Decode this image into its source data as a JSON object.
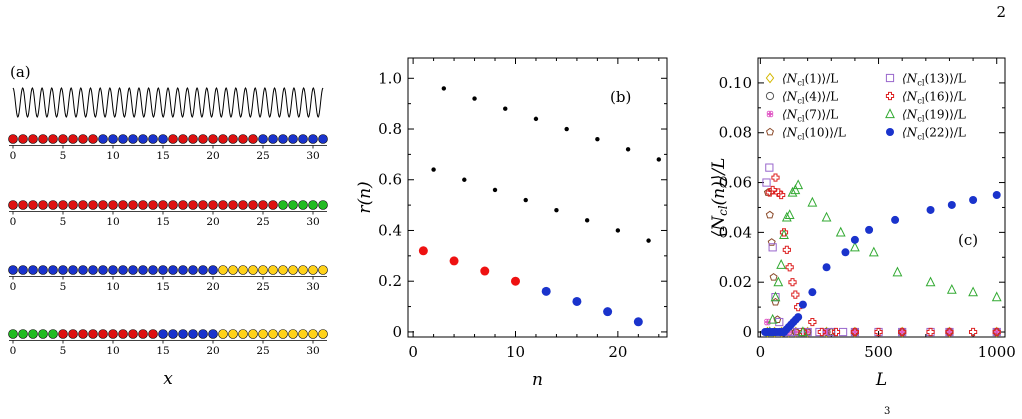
{
  "page_number": "2",
  "footnote_mark": "3",
  "chart_data": [
    {
      "type": "diagram",
      "panel_label": "(a)",
      "xlabel": "x",
      "xticks": [
        0,
        5,
        10,
        15,
        20,
        25,
        30
      ],
      "sites_per_chain": 32,
      "colors": {
        "red": "#dd1111",
        "blue": "#1a33cc",
        "green": "#22bb22",
        "yellow": "#ffd21a"
      },
      "chains": [
        [
          "red",
          "red",
          "red",
          "red",
          "red",
          "red",
          "red",
          "red",
          "red",
          "blue",
          "blue",
          "blue",
          "blue",
          "blue",
          "blue",
          "blue",
          "red",
          "red",
          "red",
          "red",
          "red",
          "red",
          "red",
          "red",
          "red",
          "blue",
          "blue",
          "blue",
          "blue",
          "blue",
          "blue",
          "blue"
        ],
        [
          "red",
          "red",
          "red",
          "red",
          "red",
          "red",
          "red",
          "red",
          "red",
          "red",
          "red",
          "red",
          "red",
          "red",
          "red",
          "red",
          "red",
          "red",
          "red",
          "red",
          "red",
          "red",
          "red",
          "red",
          "red",
          "red",
          "red",
          "green",
          "green",
          "green",
          "green",
          "green"
        ],
        [
          "blue",
          "blue",
          "blue",
          "blue",
          "blue",
          "blue",
          "blue",
          "blue",
          "blue",
          "blue",
          "blue",
          "blue",
          "blue",
          "blue",
          "blue",
          "blue",
          "blue",
          "blue",
          "blue",
          "blue",
          "blue",
          "yellow",
          "yellow",
          "yellow",
          "yellow",
          "yellow",
          "yellow",
          "yellow",
          "yellow",
          "yellow",
          "yellow",
          "yellow"
        ],
        [
          "green",
          "green",
          "green",
          "green",
          "green",
          "red",
          "red",
          "red",
          "red",
          "red",
          "red",
          "red",
          "red",
          "red",
          "red",
          "blue",
          "blue",
          "blue",
          "blue",
          "blue",
          "blue",
          "yellow",
          "yellow",
          "yellow",
          "yellow",
          "yellow",
          "yellow",
          "yellow",
          "yellow",
          "yellow",
          "yellow",
          "yellow"
        ]
      ],
      "wave_periods": 32
    },
    {
      "type": "scatter",
      "panel_label": "(b)",
      "xlabel": "n",
      "ylabel": "r(n)",
      "xlim": [
        -0.5,
        24.8
      ],
      "ylim": [
        -0.02,
        1.08
      ],
      "xticks": [
        0,
        10,
        20
      ],
      "yticks": [
        "0",
        "0.2",
        "0.4",
        "0.6",
        "0.8",
        "1.0"
      ],
      "series": [
        {
          "color": "#000000",
          "points": [
            [
              2,
              0.64
            ],
            [
              3,
              0.96
            ],
            [
              5,
              0.6
            ],
            [
              6,
              0.92
            ],
            [
              8,
              0.56
            ],
            [
              9,
              0.88
            ],
            [
              11,
              0.52
            ],
            [
              12,
              0.84
            ],
            [
              14,
              0.48
            ],
            [
              15,
              0.8
            ],
            [
              17,
              0.44
            ],
            [
              18,
              0.76
            ],
            [
              20,
              0.4
            ],
            [
              21,
              0.72
            ],
            [
              23,
              0.36
            ],
            [
              24,
              0.68
            ]
          ]
        },
        {
          "color": "#ee1111",
          "points": [
            [
              1,
              0.32
            ],
            [
              4,
              0.28
            ],
            [
              7,
              0.24
            ],
            [
              10,
              0.2
            ]
          ]
        },
        {
          "color": "#1a33cc",
          "points": [
            [
              13,
              0.16
            ],
            [
              16,
              0.12
            ],
            [
              19,
              0.08
            ],
            [
              22,
              0.04
            ]
          ]
        }
      ]
    },
    {
      "type": "scatter",
      "panel_label": "(c)",
      "xlabel": "L",
      "ylabel": "⟨N_cl(n)⟩/L",
      "xlim": [
        -10,
        1035
      ],
      "ylim": [
        -0.002,
        0.11
      ],
      "xticks": [
        0,
        500,
        1000
      ],
      "yticks": [
        "0",
        "0.02",
        "0.04",
        "0.06",
        "0.08",
        "0.10"
      ],
      "legend": [
        {
          "name": "⟨N_cl(1)⟩/L",
          "marker": "diamond",
          "color": "#d4b800"
        },
        {
          "name": "⟨N_cl(4)⟩/L",
          "marker": "circle",
          "color": "#555555"
        },
        {
          "name": "⟨N_cl(7)⟩/L",
          "marker": "flower",
          "color": "#e055c4"
        },
        {
          "name": "⟨N_cl(10)⟩/L",
          "marker": "pentagon",
          "color": "#8b4a2a"
        },
        {
          "name": "⟨N_cl(13)⟩/L",
          "marker": "square",
          "color": "#9966cc"
        },
        {
          "name": "⟨N_cl(16)⟩/L",
          "marker": "plus",
          "color": "#dd2222"
        },
        {
          "name": "⟨N_cl(19)⟩/L",
          "marker": "triangle",
          "color": "#33aa33"
        },
        {
          "name": "⟨N_cl(22)⟩/L",
          "marker": "filled-circle",
          "color": "#1a33cc"
        }
      ],
      "series": [
        {
          "name": "⟨N_cl(1)⟩/L",
          "points": [
            [
              30,
              0.0
            ],
            [
              60,
              0.0
            ],
            [
              90,
              0.0
            ],
            [
              120,
              0.0
            ],
            [
              150,
              0.0
            ],
            [
              200,
              0.0
            ],
            [
              280,
              0.0
            ],
            [
              400,
              0.0
            ],
            [
              600,
              0.0
            ],
            [
              800,
              0.0
            ],
            [
              1000,
              0.0
            ]
          ]
        },
        {
          "name": "⟨N_cl(4)⟩/L",
          "points": [
            [
              30,
              0.0
            ],
            [
              60,
              0.0
            ],
            [
              90,
              0.0
            ],
            [
              120,
              0.0
            ],
            [
              150,
              0.0
            ],
            [
              200,
              0.0
            ],
            [
              280,
              0.0
            ],
            [
              400,
              0.0
            ],
            [
              600,
              0.0
            ],
            [
              800,
              0.0
            ],
            [
              1000,
              0.0
            ]
          ]
        },
        {
          "name": "⟨N_cl(7)⟩/L",
          "points": [
            [
              30,
              0.004
            ],
            [
              45,
              0.0
            ],
            [
              60,
              0.0
            ],
            [
              90,
              0.0
            ],
            [
              120,
              0.0
            ],
            [
              150,
              0.0
            ],
            [
              200,
              0.0
            ],
            [
              280,
              0.0
            ],
            [
              400,
              0.0
            ],
            [
              600,
              0.0
            ],
            [
              800,
              0.0
            ],
            [
              1000,
              0.0
            ]
          ]
        },
        {
          "name": "⟨N_cl(10)⟩/L",
          "points": [
            [
              32,
              0.056
            ],
            [
              40,
              0.047
            ],
            [
              48,
              0.036
            ],
            [
              56,
              0.022
            ],
            [
              64,
              0.012
            ],
            [
              72,
              0.005
            ],
            [
              80,
              0.0
            ],
            [
              100,
              0.0
            ],
            [
              150,
              0.0
            ],
            [
              200,
              0.0
            ],
            [
              300,
              0.0
            ],
            [
              400,
              0.0
            ],
            [
              600,
              0.0
            ],
            [
              800,
              0.0
            ],
            [
              1000,
              0.0
            ]
          ]
        },
        {
          "name": "⟨N_cl(13)⟩/L",
          "points": [
            [
              26,
              0.06
            ],
            [
              38,
              0.066
            ],
            [
              52,
              0.034
            ],
            [
              64,
              0.014
            ],
            [
              80,
              0.004
            ],
            [
              100,
              0.0
            ],
            [
              130,
              0.0
            ],
            [
              160,
              0.0
            ],
            [
              200,
              0.0
            ],
            [
              250,
              0.0
            ],
            [
              300,
              0.0
            ],
            [
              350,
              0.0
            ],
            [
              400,
              0.0
            ],
            [
              500,
              0.0
            ],
            [
              600,
              0.0
            ],
            [
              720,
              0.0
            ],
            [
              800,
              0.0
            ],
            [
              1000,
              0.0
            ]
          ]
        },
        {
          "name": "⟨N_cl(16)⟩/L",
          "points": [
            [
              40,
              0.056
            ],
            [
              52,
              0.057
            ],
            [
              64,
              0.062
            ],
            [
              76,
              0.056
            ],
            [
              88,
              0.055
            ],
            [
              100,
              0.04
            ],
            [
              112,
              0.033
            ],
            [
              124,
              0.026
            ],
            [
              136,
              0.02
            ],
            [
              148,
              0.015
            ],
            [
              160,
              0.01
            ],
            [
              180,
              0.0
            ],
            [
              220,
              0.004
            ],
            [
              260,
              0.0
            ],
            [
              320,
              0.0
            ],
            [
              400,
              0.0
            ],
            [
              500,
              0.0
            ],
            [
              600,
              0.0
            ],
            [
              720,
              0.0
            ],
            [
              800,
              0.0
            ],
            [
              900,
              0.0
            ],
            [
              1000,
              0.0
            ]
          ]
        },
        {
          "name": "⟨N_cl(19)⟩/L",
          "points": [
            [
              40,
              0.0
            ],
            [
              52,
              0.005
            ],
            [
              64,
              0.014
            ],
            [
              76,
              0.02
            ],
            [
              88,
              0.027
            ],
            [
              100,
              0.039
            ],
            [
              112,
              0.046
            ],
            [
              124,
              0.047
            ],
            [
              136,
              0.056
            ],
            [
              148,
              0.057
            ],
            [
              160,
              0.059
            ],
            [
              180,
              0.0
            ],
            [
              220,
              0.052
            ],
            [
              280,
              0.046
            ],
            [
              340,
              0.04
            ],
            [
              400,
              0.034
            ],
            [
              480,
              0.032
            ],
            [
              580,
              0.024
            ],
            [
              720,
              0.02
            ],
            [
              810,
              0.017
            ],
            [
              900,
              0.016
            ],
            [
              1000,
              0.014
            ]
          ]
        },
        {
          "name": "⟨N_cl(22)⟩/L",
          "points": [
            [
              20,
              0.0
            ],
            [
              30,
              0.0
            ],
            [
              40,
              0.0
            ],
            [
              50,
              0.0
            ],
            [
              60,
              0.0
            ],
            [
              70,
              0.0
            ],
            [
              80,
              0.0
            ],
            [
              90,
              0.0
            ],
            [
              100,
              0.0
            ],
            [
              110,
              0.001
            ],
            [
              120,
              0.002
            ],
            [
              130,
              0.003
            ],
            [
              140,
              0.004
            ],
            [
              150,
              0.005
            ],
            [
              160,
              0.006
            ],
            [
              180,
              0.011
            ],
            [
              220,
              0.016
            ],
            [
              280,
              0.026
            ],
            [
              360,
              0.032
            ],
            [
              400,
              0.037
            ],
            [
              460,
              0.041
            ],
            [
              570,
              0.045
            ],
            [
              720,
              0.049
            ],
            [
              810,
              0.051
            ],
            [
              900,
              0.053
            ],
            [
              1000,
              0.055
            ]
          ]
        }
      ]
    }
  ]
}
